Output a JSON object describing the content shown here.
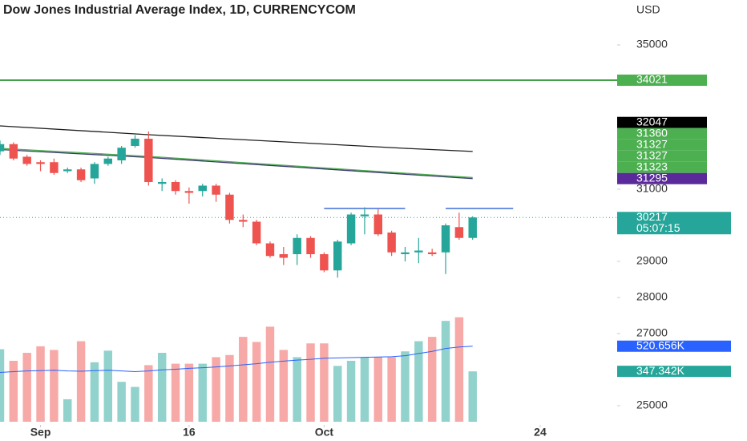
{
  "chart_data": {
    "type": "candlestick",
    "title": "Dow Jones Industrial Average Index, 1D, CURRENCYCOM",
    "currency": "USD",
    "x": [
      0,
      1,
      2,
      3,
      4,
      5,
      6,
      7,
      8,
      9,
      10,
      11,
      12,
      13,
      14,
      15,
      16,
      17,
      18,
      19,
      20,
      21,
      22,
      23,
      24,
      25,
      26,
      27,
      28,
      29,
      30,
      31,
      32,
      33,
      34,
      35
    ],
    "xlim": [
      0,
      45.7
    ],
    "xticks": [
      {
        "value": 3,
        "label": "Sep"
      },
      {
        "value": 14,
        "label": "16"
      },
      {
        "value": 24,
        "label": "Oct"
      },
      {
        "value": 40,
        "label": "24"
      }
    ],
    "open": [
      32050,
      32250,
      31900,
      31750,
      31750,
      31500,
      31550,
      31300,
      31700,
      31800,
      32200,
      32400,
      31150,
      31200,
      30950,
      30950,
      31100,
      30850,
      30150,
      30100,
      29500,
      29200,
      29200,
      29650,
      29200,
      28750,
      29500,
      30250,
      30300,
      29800,
      29200,
      29250,
      29250,
      29250,
      29950,
      29650
    ],
    "high": [
      32350,
      32300,
      31950,
      31800,
      31850,
      31600,
      31600,
      31750,
      31900,
      32200,
      32500,
      32600,
      31300,
      31250,
      31050,
      31150,
      31150,
      30900,
      30300,
      30150,
      29550,
      29400,
      29750,
      29700,
      29250,
      29600,
      30350,
      30500,
      30450,
      29850,
      29400,
      29650,
      29350,
      30050,
      30350,
      30250
    ],
    "low": [
      31950,
      31800,
      31650,
      31500,
      31400,
      31450,
      31200,
      31150,
      31650,
      31700,
      32150,
      31100,
      30950,
      30850,
      30600,
      30800,
      30650,
      30050,
      29950,
      29450,
      29100,
      28900,
      28900,
      29100,
      28700,
      28550,
      29450,
      29750,
      29700,
      29150,
      29000,
      28950,
      29150,
      28650,
      29600,
      29600
    ],
    "close": [
      32250,
      31850,
      31700,
      31700,
      31450,
      31550,
      31250,
      31700,
      31850,
      32150,
      32400,
      31200,
      31200,
      30950,
      30900,
      31100,
      30850,
      30150,
      30100,
      29500,
      29150,
      29100,
      29650,
      29200,
      28750,
      29550,
      30300,
      30300,
      29750,
      29250,
      29250,
      29300,
      29200,
      30000,
      29650,
      30217
    ],
    "volume": [
      500,
      420,
      475,
      520,
      495,
      155,
      555,
      410,
      490,
      275,
      240,
      390,
      475,
      400,
      400,
      400,
      445,
      460,
      585,
      550,
      655,
      495,
      445,
      540,
      540,
      385,
      420,
      445,
      445,
      445,
      485,
      555,
      585,
      695,
      720,
      347.342
    ],
    "volume_ma": [
      340,
      345,
      350,
      352,
      355,
      350,
      348,
      352,
      355,
      350,
      345,
      350,
      358,
      362,
      368,
      372,
      378,
      385,
      392,
      400,
      410,
      418,
      425,
      430,
      438,
      440,
      442,
      444,
      446,
      448,
      455,
      470,
      485,
      505,
      515,
      520.656
    ],
    "volume_ma_color": "#2962ff",
    "up_color": "#26a69a",
    "down_color": "#ef5350",
    "ylim": [
      24467,
      36244
    ],
    "yticks": [
      35000,
      31000,
      29000,
      28000,
      27000,
      25000
    ],
    "volume_lim": [
      0,
      1000
    ],
    "ma_lines": [
      {
        "color": "#1e1e1e",
        "x": [
          0,
          11,
          20,
          30,
          35
        ],
        "values": [
          32756,
          32511,
          32333,
          32133,
          32047
        ]
      },
      {
        "color": "#4caf50",
        "x": [
          0,
          11,
          20,
          30,
          35
        ],
        "values": [
          32133,
          31911,
          31689,
          31444,
          31323
        ]
      },
      {
        "color": "#3a3a6a",
        "x": [
          0,
          11,
          20,
          30,
          35
        ],
        "values": [
          32100,
          31880,
          31660,
          31415,
          31295
        ]
      }
    ],
    "hlines": [
      {
        "value": 34021,
        "color": "#43a047"
      }
    ],
    "resistance_lines": [
      {
        "value": 30467,
        "x": [
          24,
          30
        ],
        "color": "#3f6fd8"
      },
      {
        "value": 30467,
        "x": [
          33,
          38
        ],
        "color": "#3f6fd8"
      }
    ],
    "price_labels": [
      {
        "value": 34021,
        "color": "#4caf50"
      },
      {
        "value": 32047,
        "color": "#000000"
      },
      {
        "value": 31360,
        "color": "#4caf50"
      },
      {
        "value": 31327,
        "color": "#4caf50"
      },
      {
        "value": 31327,
        "color": "#4caf50"
      },
      {
        "value": 31323,
        "color": "#4caf50"
      },
      {
        "value": 31295,
        "color": "#5b2a9a"
      }
    ],
    "last_price": {
      "value": 30217,
      "countdown": "05:07:15",
      "color": "#26a69a"
    },
    "volume_labels": [
      {
        "value": 520.656,
        "label": "520.656K",
        "color": "#2962ff"
      },
      {
        "value": 347.342,
        "label": "347.342K",
        "color": "#26a69a"
      }
    ]
  }
}
